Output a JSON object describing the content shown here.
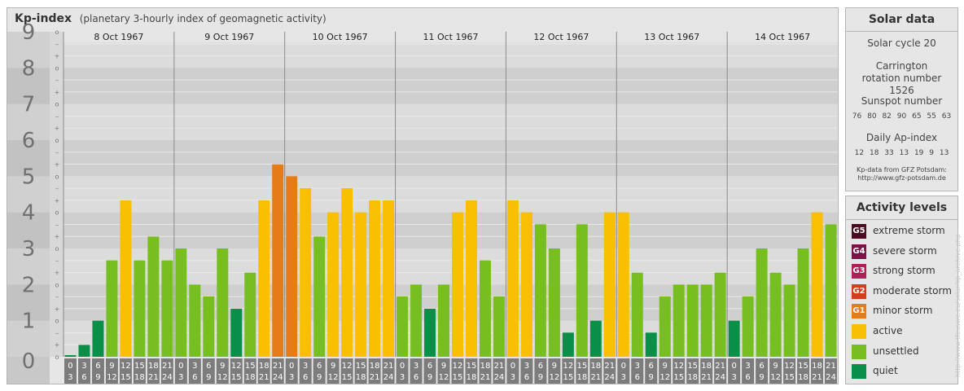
{
  "header": {
    "title": "Kp-index",
    "subtitle": "(planetary 3-hourly index of geomagnetic activity)"
  },
  "chart_data": {
    "type": "bar",
    "title": "Kp-index",
    "subtitle": "(planetary 3-hourly index of geomagnetic activity)",
    "ylim": [
      0,
      9
    ],
    "y_ticks": [
      "0",
      "1",
      "2",
      "3",
      "4",
      "5",
      "6",
      "7",
      "8",
      "9"
    ],
    "minor_tick_labels": [
      "–",
      "o",
      "+"
    ],
    "days": [
      "8 Oct 1967",
      "9 Oct 1967",
      "10 Oct 1967",
      "11 Oct 1967",
      "12 Oct 1967",
      "13 Oct 1967",
      "14 Oct 1967"
    ],
    "intervals": [
      {
        "start": "0",
        "end": "3"
      },
      {
        "start": "3",
        "end": "6"
      },
      {
        "start": "6",
        "end": "9"
      },
      {
        "start": "9",
        "end": "12"
      },
      {
        "start": "12",
        "end": "15"
      },
      {
        "start": "15",
        "end": "18"
      },
      {
        "start": "18",
        "end": "21"
      },
      {
        "start": "21",
        "end": "24"
      }
    ],
    "values": [
      0.0,
      0.33,
      1.0,
      2.67,
      4.33,
      2.67,
      3.33,
      2.67,
      3.0,
      2.0,
      1.67,
      3.0,
      1.33,
      2.33,
      4.33,
      5.33,
      5.0,
      4.67,
      3.33,
      4.0,
      4.67,
      4.0,
      4.33,
      4.33,
      1.67,
      2.0,
      1.33,
      2.0,
      4.0,
      4.33,
      2.67,
      1.67,
      4.33,
      4.0,
      3.67,
      3.0,
      0.67,
      3.67,
      1.0,
      4.0,
      4.0,
      2.33,
      0.67,
      1.67,
      2.0,
      2.0,
      2.0,
      2.33,
      1.0,
      1.67,
      3.0,
      2.33,
      2.0,
      3.0,
      4.0,
      3.67
    ],
    "grid": true,
    "colors": {
      "quiet": "#0a8f48",
      "unsettled": "#77bf21",
      "active": "#f8c000",
      "minor_storm": "#e67c18",
      "moderate_storm": "#d63b1c",
      "strong_storm": "#b11f58",
      "severe_storm": "#7a1347",
      "extreme_storm": "#4d0b23"
    }
  },
  "solar_data": {
    "title": "Solar data",
    "cycle": "Solar cycle 20",
    "carrington": "Carrington rotation number 1526",
    "sunspot_label": "Sunspot number",
    "sunspot_values": [
      "76",
      "80",
      "82",
      "90",
      "65",
      "55",
      "63"
    ],
    "ap_label": "Daily Ap-index",
    "ap_values": [
      "12",
      "18",
      "33",
      "13",
      "19",
      "9",
      "13"
    ],
    "source_line1": "Kp-data from GFZ Potsdam:",
    "source_line2": "http://www.gfz-potsdam.de"
  },
  "activity_levels": {
    "title": "Activity levels",
    "items": [
      {
        "badge": "G5",
        "label": "extreme storm",
        "color": "#4d0b23"
      },
      {
        "badge": "G4",
        "label": "severe storm",
        "color": "#7a1347"
      },
      {
        "badge": "G3",
        "label": "strong storm",
        "color": "#b11f58"
      },
      {
        "badge": "G2",
        "label": "moderate storm",
        "color": "#d63b1c"
      },
      {
        "badge": "G1",
        "label": "minor storm",
        "color": "#e67c18"
      },
      {
        "badge": "",
        "label": "active",
        "color": "#f8c000"
      },
      {
        "badge": "",
        "label": "unsettled",
        "color": "#77bf21"
      },
      {
        "badge": "",
        "label": "quiet",
        "color": "#0a8f48"
      }
    ]
  },
  "watermark": "http://www.tfeuswe.eu/solar/kp_archive.php"
}
